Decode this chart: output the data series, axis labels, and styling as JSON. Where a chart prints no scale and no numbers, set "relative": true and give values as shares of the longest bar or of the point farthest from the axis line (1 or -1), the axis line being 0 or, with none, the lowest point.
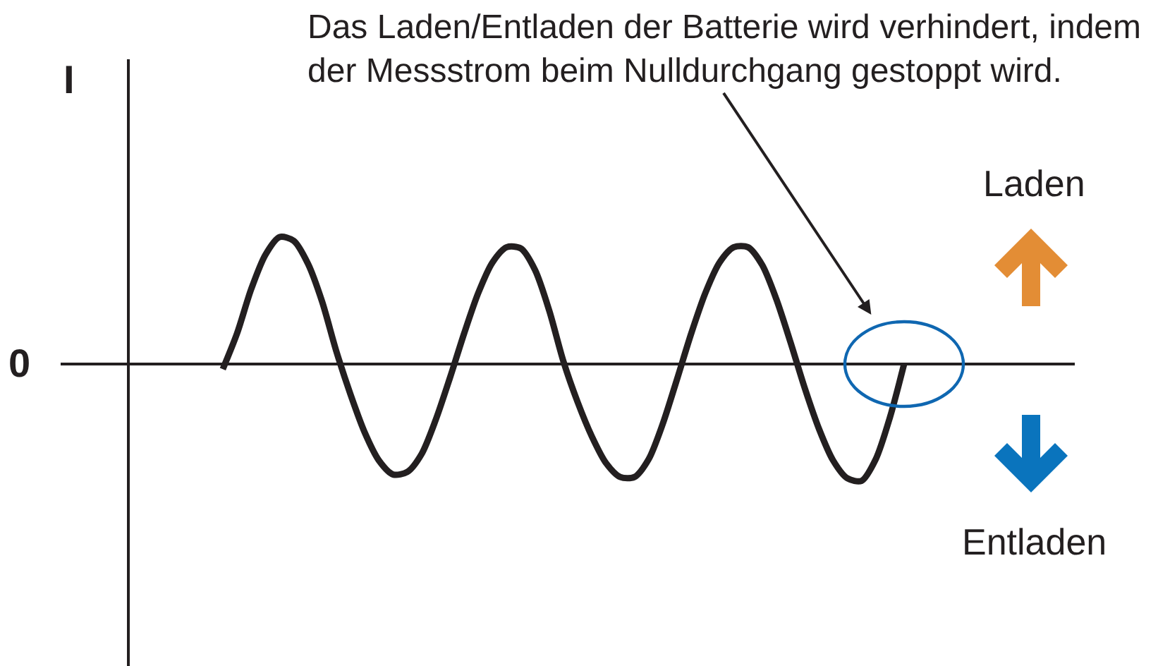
{
  "chart_data": {
    "type": "line",
    "ylabel": "I",
    "relative": true,
    "categories": [
      null,
      null,
      null,
      null,
      null,
      null,
      null,
      null,
      null,
      null,
      null,
      null,
      null,
      null,
      null,
      null,
      null,
      null,
      null,
      null,
      null,
      null,
      null,
      null,
      null,
      null,
      null,
      null,
      null,
      null,
      null,
      null,
      null,
      null,
      null,
      null,
      null,
      null,
      null,
      null,
      null,
      null,
      null,
      null,
      null,
      null,
      null,
      null,
      null
    ],
    "series": [
      {
        "color": "#231f20",
        "values": [
          -0.04,
          0.24,
          0.59,
          0.86,
          1.0,
          0.97,
          0.79,
          0.49,
          0.1,
          -0.24,
          -0.54,
          -0.76,
          -0.87,
          -0.85,
          -0.71,
          -0.44,
          -0.11,
          0.24,
          0.56,
          0.8,
          0.92,
          0.91,
          0.74,
          0.42,
          0.02,
          -0.3,
          -0.57,
          -0.78,
          -0.89,
          -0.89,
          -0.75,
          -0.47,
          -0.12,
          0.24,
          0.56,
          0.8,
          0.92,
          0.92,
          0.78,
          0.51,
          0.17,
          -0.19,
          -0.51,
          -0.76,
          -0.9,
          -0.92,
          -0.75,
          -0.42,
          0.0
        ]
      }
    ],
    "ref_lines": [
      {
        "axis": "y",
        "value": 0,
        "label": "0",
        "color": "#231f20"
      }
    ],
    "annotations": [
      "Das Laden/Entladen der Batterie wird verhindert, indem der Messstrom beim Nulldurchgang gestoppt wird.",
      "Laden",
      "Entladen"
    ]
  }
}
